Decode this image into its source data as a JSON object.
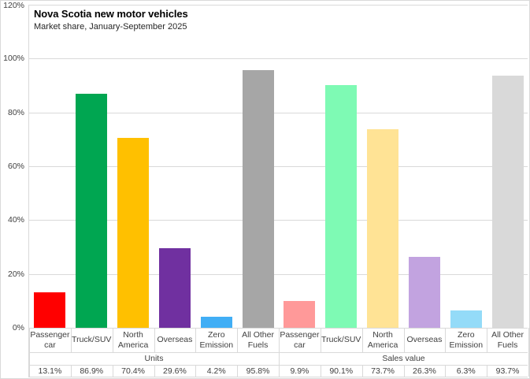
{
  "chart_data": {
    "type": "bar",
    "title": "Nova Scotia new motor vehicles",
    "subtitle": "Market share, January-September 2025",
    "y_axis": {
      "min": 0,
      "max": 120,
      "step": 20,
      "tick_labels": [
        "0%",
        "20%",
        "40%",
        "60%",
        "80%",
        "100%",
        "120%"
      ],
      "grid": true
    },
    "groups": [
      {
        "label": "Units",
        "categories": [
          [
            "Passenger",
            "car"
          ],
          [
            "Truck/SUV"
          ],
          [
            "North",
            "America"
          ],
          [
            "Overseas"
          ],
          [
            "Zero",
            "Emission"
          ],
          [
            "All Other",
            "Fuels"
          ]
        ],
        "values": [
          13.1,
          86.9,
          70.4,
          29.6,
          4.2,
          95.8
        ],
        "value_labels": [
          "13.1%",
          "86.9%",
          "70.4%",
          "29.6%",
          "4.2%",
          "95.8%"
        ],
        "colors": [
          "#FF0000",
          "#00A651",
          "#FFC000",
          "#7030A0",
          "#41AEF5",
          "#A6A6A6"
        ]
      },
      {
        "label": "Sales value",
        "categories": [
          [
            "Passenger",
            "car"
          ],
          [
            "Truck/SUV"
          ],
          [
            "North",
            "America"
          ],
          [
            "Overseas"
          ],
          [
            "Zero",
            "Emission"
          ],
          [
            "All Other",
            "Fuels"
          ]
        ],
        "values": [
          9.9,
          90.1,
          73.7,
          26.3,
          6.3,
          93.7
        ],
        "value_labels": [
          "9.9%",
          "90.1%",
          "73.7%",
          "26.3%",
          "6.3%",
          "93.7%"
        ],
        "colors": [
          "#FF9999",
          "#7EFAB4",
          "#FFE395",
          "#C2A3E0",
          "#94DBF8",
          "#D9D9D9"
        ]
      }
    ],
    "style_colors": {
      "gridline": "#D9D9D9",
      "table_line": "#D9D9D9",
      "axis_text": "#404040",
      "title_text": "#000000"
    }
  }
}
